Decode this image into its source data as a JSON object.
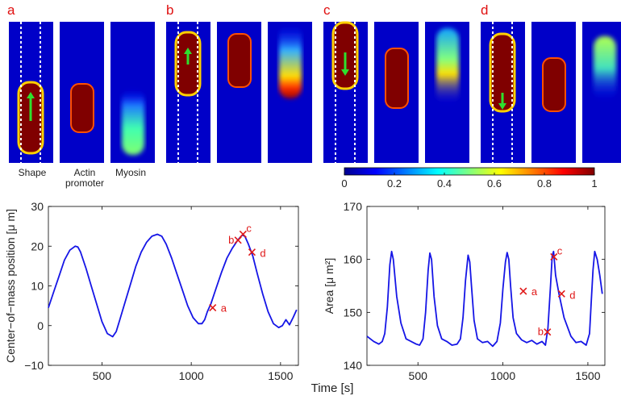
{
  "panels": {
    "letters": [
      "a",
      "b",
      "c",
      "d"
    ],
    "column_labels": [
      "Shape",
      "Actin promoter",
      "Myosin"
    ]
  },
  "colorbar": {
    "colormap": "jet",
    "ticks": [
      "0",
      "0.2",
      "0.4",
      "0.6",
      "0.8",
      "1"
    ],
    "min": 0,
    "max": 1
  },
  "colors": {
    "line": "#1515e6",
    "marker": "#e01818",
    "arrow": "#2ee02e",
    "panel_letter": "#e01010"
  },
  "chart_data": [
    {
      "type": "line",
      "title": "",
      "xlabel": "Time [s]",
      "ylabel": "Center−of−mass position [μ m]",
      "xlim": [
        200,
        1600
      ],
      "ylim": [
        -10,
        30
      ],
      "xticks": [
        500,
        1000,
        1500
      ],
      "xtick_labels": [
        "500",
        "1000",
        "1500"
      ],
      "yticks": [
        -10,
        0,
        10,
        20,
        30
      ],
      "ytick_labels": [
        "−10",
        "0",
        "10",
        "20",
        "30"
      ],
      "grid": false,
      "series": [
        {
          "x": [
            200,
            230,
            260,
            290,
            320,
            350,
            365,
            380,
            410,
            440,
            470,
            500,
            530,
            560,
            580,
            600,
            630,
            660,
            690,
            720,
            750,
            780,
            810,
            835,
            860,
            890,
            920,
            950,
            980,
            1010,
            1040,
            1060,
            1075,
            1090,
            1110,
            1140,
            1170,
            1200,
            1230,
            1260,
            1285,
            1300,
            1320,
            1345,
            1370,
            1400,
            1430,
            1460,
            1490,
            1510,
            1530,
            1550,
            1570,
            1590
          ],
          "values": [
            4.5,
            8.5,
            12.5,
            16.5,
            19,
            20,
            19.8,
            18.5,
            14.5,
            10,
            5.5,
            1,
            -2,
            -2.8,
            -1.5,
            1.5,
            6,
            10.5,
            15,
            18.5,
            21,
            22.5,
            23,
            22.5,
            20.5,
            17,
            13,
            9,
            5,
            2,
            0.5,
            0.5,
            1.5,
            3.5,
            5.5,
            9.5,
            13.5,
            17,
            19.5,
            21.5,
            22.8,
            22.5,
            20.5,
            17.5,
            13,
            8,
            3.5,
            0.5,
            -0.5,
            0,
            1.5,
            0.2,
            2,
            4
          ]
        }
      ],
      "annotations": [
        {
          "label": "a",
          "x": 1120,
          "y": 4.5
        },
        {
          "label": "b",
          "x": 1262,
          "y": 21.5
        },
        {
          "label": "c",
          "x": 1290,
          "y": 23
        },
        {
          "label": "d",
          "x": 1340,
          "y": 18.5
        }
      ]
    },
    {
      "type": "line",
      "title": "",
      "xlabel": "Time [s]",
      "ylabel": "Area [μ m²]",
      "xlim": [
        200,
        1600
      ],
      "ylim": [
        140,
        170
      ],
      "xticks": [
        500,
        1000,
        1500
      ],
      "xtick_labels": [
        "500",
        "1000",
        "1500"
      ],
      "yticks": [
        140,
        150,
        160,
        170
      ],
      "ytick_labels": [
        "140",
        "150",
        "160",
        "170"
      ],
      "grid": false,
      "series": [
        {
          "x": [
            200,
            240,
            270,
            290,
            305,
            320,
            335,
            345,
            355,
            375,
            400,
            430,
            460,
            490,
            510,
            530,
            545,
            560,
            570,
            580,
            595,
            615,
            640,
            670,
            700,
            730,
            750,
            765,
            780,
            795,
            805,
            815,
            830,
            850,
            880,
            910,
            940,
            965,
            985,
            1000,
            1015,
            1025,
            1035,
            1045,
            1060,
            1080,
            1110,
            1140,
            1170,
            1200,
            1230,
            1250,
            1265,
            1280,
            1290,
            1298,
            1310,
            1330,
            1360,
            1400,
            1430,
            1460,
            1490,
            1510,
            1520,
            1530,
            1540,
            1555,
            1570,
            1585
          ],
          "values": [
            145.5,
            144.5,
            144,
            144.5,
            146,
            151,
            159,
            161.5,
            160,
            153,
            148,
            145,
            144.5,
            144,
            143.8,
            145,
            150,
            158,
            161.2,
            160,
            153,
            147.5,
            145,
            144.5,
            143.8,
            144,
            145,
            149,
            156,
            160.8,
            159.5,
            155,
            148.5,
            145,
            144.3,
            144.5,
            143.6,
            144.5,
            148,
            154.5,
            159.5,
            161.3,
            160,
            155,
            149,
            146,
            144.8,
            144.3,
            144.7,
            144,
            144.5,
            143.8,
            147,
            155,
            160.7,
            161.5,
            157,
            153.5,
            149,
            145.5,
            144.3,
            144.5,
            143.8,
            146,
            152,
            158,
            161.5,
            160,
            157,
            153.5
          ]
        }
      ],
      "annotations": [
        {
          "label": "a",
          "x": 1120,
          "y": 154
        },
        {
          "label": "b",
          "x": 1262,
          "y": 146.3
        },
        {
          "label": "c",
          "x": 1300,
          "y": 160.5
        },
        {
          "label": "d",
          "x": 1345,
          "y": 153.5
        }
      ]
    }
  ]
}
